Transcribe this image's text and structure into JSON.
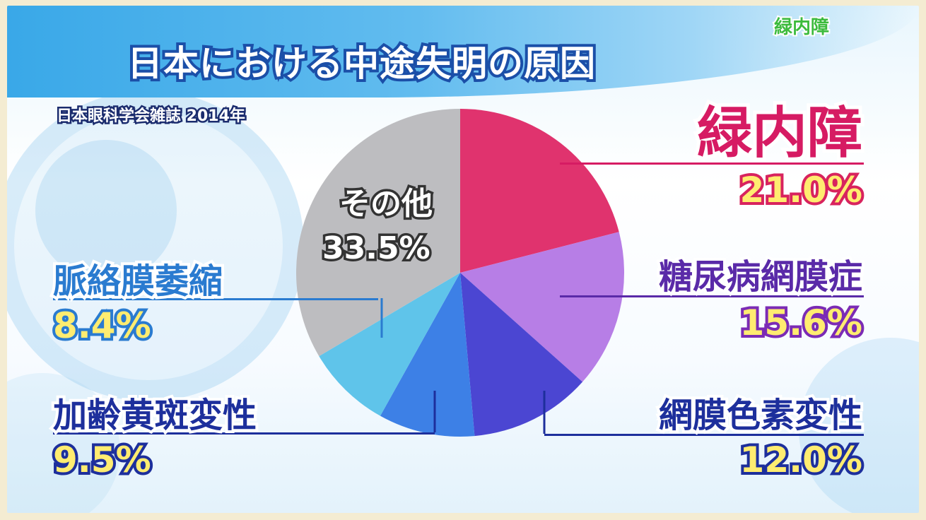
{
  "header": {
    "title": "日本における中途失明の原因",
    "source": "日本眼科学会雑誌 2014年",
    "corner_tag": "緑内障"
  },
  "chart_data": {
    "type": "pie",
    "title": "日本における中途失明の原因",
    "source": "日本眼科学会雑誌 2014年",
    "slices": [
      {
        "label": "緑内障",
        "value": 21.0,
        "display": "21.0%",
        "color": "#e0336e"
      },
      {
        "label": "糖尿病網膜症",
        "value": 15.6,
        "display": "15.6%",
        "color": "#b77ee6"
      },
      {
        "label": "網膜色素変性",
        "value": 12.0,
        "display": "12.0%",
        "color": "#4b46d2"
      },
      {
        "label": "加齢黄斑変性",
        "value": 9.5,
        "display": "9.5%",
        "color": "#3d80e6"
      },
      {
        "label": "脈絡膜萎縮",
        "value": 8.4,
        "display": "8.4%",
        "color": "#5fc4ea"
      },
      {
        "label": "その他",
        "value": 33.5,
        "display": "33.5%",
        "color": "#bdbdc0"
      }
    ]
  },
  "colors": {
    "pink": "#d61b63",
    "purple": "#5a2aa8",
    "navy": "#1d2f9c",
    "lightblue": "#2a7bd0",
    "yellow": "#ffec70"
  }
}
